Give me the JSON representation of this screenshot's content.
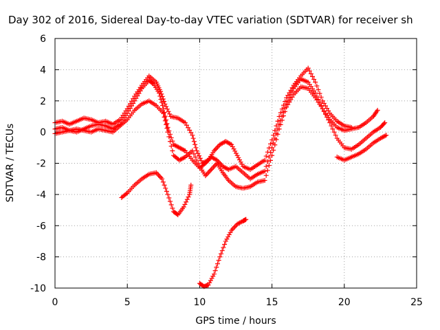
{
  "chart_data": {
    "type": "scatter",
    "title": "Day 302 of 2016, Sidereal Day-to-day VTEC variation (SDTVAR) for receiver sh",
    "xlabel": "GPS time / hours",
    "ylabel": "SDTVAR / TECUs",
    "xlim": [
      0,
      25
    ],
    "ylim": [
      -10,
      6
    ],
    "xticks": [
      "0",
      "5",
      "10",
      "15",
      "20",
      "25"
    ],
    "yticks": [
      "6",
      "4",
      "2",
      "0",
      "-2",
      "-4",
      "-6",
      "-8",
      "-10"
    ],
    "grid": true,
    "marker": "plus",
    "color": "#ff0000",
    "series": [
      {
        "points": [
          [
            0.0,
            0.2
          ],
          [
            0.5,
            0.3
          ],
          [
            1.0,
            0.1
          ],
          [
            1.5,
            0.0
          ],
          [
            2.0,
            0.2
          ],
          [
            2.5,
            0.4
          ],
          [
            3.0,
            0.5
          ],
          [
            3.5,
            0.4
          ],
          [
            4.0,
            0.2
          ],
          [
            4.5,
            0.5
          ],
          [
            5.0,
            1.2
          ],
          [
            5.5,
            2.0
          ],
          [
            6.0,
            2.8
          ],
          [
            6.5,
            3.3
          ],
          [
            6.8,
            3.1
          ],
          [
            7.2,
            2.5
          ],
          [
            7.5,
            1.5
          ],
          [
            7.8,
            0.3
          ],
          [
            8.2,
            -0.8
          ],
          [
            8.6,
            -1.0
          ],
          [
            9.0,
            -1.2
          ],
          [
            9.5,
            -1.8
          ],
          [
            10.0,
            -2.3
          ],
          [
            10.4,
            -2.0
          ],
          [
            10.8,
            -1.6
          ],
          [
            11.2,
            -1.8
          ],
          [
            11.6,
            -2.2
          ],
          [
            12.0,
            -2.4
          ],
          [
            12.5,
            -2.2
          ],
          [
            13.0,
            -2.6
          ],
          [
            13.5,
            -3.0
          ],
          [
            14.0,
            -2.7
          ],
          [
            14.5,
            -2.5
          ],
          [
            15.0,
            -1.0
          ],
          [
            15.5,
            0.5
          ],
          [
            16.0,
            1.8
          ],
          [
            16.5,
            2.8
          ],
          [
            17.0,
            3.4
          ],
          [
            17.5,
            3.2
          ],
          [
            18.0,
            2.5
          ],
          [
            18.5,
            1.5
          ],
          [
            19.0,
            0.8
          ],
          [
            19.5,
            0.3
          ],
          [
            20.0,
            0.1
          ],
          [
            20.5,
            0.2
          ],
          [
            21.0,
            0.3
          ],
          [
            21.5,
            0.6
          ],
          [
            22.0,
            1.0
          ],
          [
            22.3,
            1.4
          ]
        ]
      },
      {
        "points": [
          [
            0.0,
            0.6
          ],
          [
            0.5,
            0.7
          ],
          [
            1.0,
            0.5
          ],
          [
            1.5,
            0.7
          ],
          [
            2.0,
            0.9
          ],
          [
            2.5,
            0.8
          ],
          [
            3.0,
            0.6
          ],
          [
            3.5,
            0.7
          ],
          [
            4.0,
            0.5
          ],
          [
            4.5,
            0.8
          ],
          [
            5.0,
            1.5
          ],
          [
            5.5,
            2.3
          ],
          [
            6.0,
            3.0
          ],
          [
            6.5,
            3.6
          ],
          [
            7.0,
            3.2
          ],
          [
            7.3,
            2.6
          ],
          [
            7.6,
            1.8
          ],
          [
            8.0,
            1.0
          ],
          [
            8.5,
            0.9
          ],
          [
            9.0,
            0.6
          ],
          [
            9.5,
            -0.2
          ],
          [
            9.8,
            -1.2
          ],
          [
            10.2,
            -2.0
          ],
          [
            10.6,
            -1.8
          ],
          [
            11.0,
            -1.2
          ],
          [
            11.4,
            -0.8
          ],
          [
            11.8,
            -0.6
          ],
          [
            12.2,
            -0.8
          ],
          [
            12.6,
            -1.5
          ],
          [
            13.0,
            -2.2
          ],
          [
            13.5,
            -2.4
          ],
          [
            14.0,
            -2.1
          ],
          [
            14.5,
            -1.8
          ],
          [
            15.0,
            -0.5
          ],
          [
            15.5,
            1.0
          ],
          [
            16.0,
            2.2
          ],
          [
            16.5,
            3.0
          ],
          [
            17.0,
            3.6
          ],
          [
            17.5,
            4.1
          ],
          [
            18.0,
            3.2
          ],
          [
            18.5,
            2.0
          ],
          [
            19.0,
            1.2
          ],
          [
            19.5,
            0.7
          ],
          [
            20.0,
            0.4
          ],
          [
            20.5,
            0.3
          ]
        ]
      },
      {
        "points": [
          [
            0.0,
            -0.1
          ],
          [
            0.5,
            0.0
          ],
          [
            1.0,
            0.1
          ],
          [
            1.5,
            0.2
          ],
          [
            2.0,
            0.1
          ],
          [
            2.5,
            0.0
          ],
          [
            3.0,
            0.2
          ],
          [
            3.5,
            0.1
          ],
          [
            4.0,
            0.0
          ],
          [
            4.5,
            0.4
          ],
          [
            5.0,
            0.8
          ],
          [
            5.5,
            1.4
          ],
          [
            6.0,
            1.8
          ],
          [
            6.5,
            2.0
          ],
          [
            7.0,
            1.7
          ],
          [
            7.5,
            1.2
          ],
          [
            7.8,
            0.0
          ],
          [
            8.2,
            -1.5
          ],
          [
            8.6,
            -1.8
          ],
          [
            9.0,
            -1.6
          ],
          [
            9.5,
            -1.2
          ],
          [
            10.0,
            -2.2
          ],
          [
            10.4,
            -2.8
          ],
          [
            10.8,
            -2.4
          ],
          [
            11.2,
            -2.0
          ],
          [
            11.6,
            -2.6
          ],
          [
            12.0,
            -3.1
          ],
          [
            12.5,
            -3.5
          ],
          [
            13.0,
            -3.6
          ],
          [
            13.5,
            -3.5
          ],
          [
            14.0,
            -3.2
          ],
          [
            14.5,
            -3.1
          ],
          [
            15.0,
            -1.5
          ],
          [
            15.5,
            0.2
          ],
          [
            16.0,
            1.6
          ],
          [
            16.5,
            2.4
          ],
          [
            17.0,
            2.9
          ],
          [
            17.5,
            2.8
          ],
          [
            18.0,
            2.2
          ],
          [
            18.5,
            1.5
          ],
          [
            19.0,
            0.6
          ],
          [
            19.5,
            -0.4
          ],
          [
            20.0,
            -1.0
          ],
          [
            20.5,
            -1.1
          ],
          [
            21.0,
            -0.8
          ],
          [
            21.5,
            -0.4
          ],
          [
            22.0,
            0.0
          ],
          [
            22.5,
            0.3
          ],
          [
            22.8,
            0.6
          ]
        ]
      },
      {
        "points": [
          [
            19.5,
            -1.6
          ],
          [
            20.0,
            -1.8
          ],
          [
            20.5,
            -1.6
          ],
          [
            21.0,
            -1.4
          ],
          [
            21.5,
            -1.1
          ],
          [
            22.0,
            -0.7
          ],
          [
            22.5,
            -0.4
          ],
          [
            22.9,
            -0.2
          ]
        ]
      },
      {
        "points": [
          [
            4.6,
            -4.2
          ],
          [
            5.0,
            -3.9
          ],
          [
            5.5,
            -3.4
          ],
          [
            6.0,
            -3.0
          ],
          [
            6.5,
            -2.7
          ],
          [
            7.0,
            -2.6
          ],
          [
            7.4,
            -3.0
          ],
          [
            7.8,
            -4.0
          ],
          [
            8.2,
            -5.1
          ],
          [
            8.5,
            -5.3
          ],
          [
            8.9,
            -4.8
          ],
          [
            9.3,
            -4.0
          ],
          [
            9.4,
            -3.4
          ]
        ]
      },
      {
        "points": [
          [
            10.0,
            -9.7
          ],
          [
            10.3,
            -9.9
          ],
          [
            10.6,
            -9.8
          ],
          [
            11.0,
            -9.1
          ],
          [
            11.4,
            -8.0
          ],
          [
            11.8,
            -7.0
          ],
          [
            12.2,
            -6.3
          ],
          [
            12.6,
            -5.9
          ],
          [
            13.0,
            -5.7
          ],
          [
            13.2,
            -5.6
          ]
        ]
      }
    ]
  }
}
